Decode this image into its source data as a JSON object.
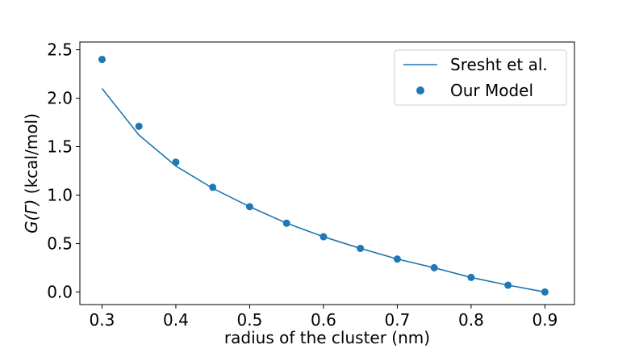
{
  "chart_data": {
    "type": "line",
    "title": "",
    "xlabel": "radius of the cluster (nm)",
    "ylabel_prefix": "G(Γ)",
    "ylabel_suffix": " (kcal/mol)",
    "xlim": [
      0.27,
      0.94
    ],
    "ylim": [
      -0.13,
      2.58
    ],
    "xticks": [
      0.3,
      0.4,
      0.5,
      0.6,
      0.7,
      0.8,
      0.9
    ],
    "xtick_labels": [
      "0.3",
      "0.4",
      "0.5",
      "0.6",
      "0.7",
      "0.8",
      "0.9"
    ],
    "yticks": [
      0.0,
      0.5,
      1.0,
      1.5,
      2.0,
      2.5
    ],
    "ytick_labels": [
      "0.0",
      "0.5",
      "1.0",
      "1.5",
      "2.0",
      "2.5"
    ],
    "grid": false,
    "legend_position": "top-right",
    "series": [
      {
        "name": "Sresht et al.",
        "kind": "line",
        "color": "#1f77b4",
        "x": [
          0.3,
          0.35,
          0.4,
          0.45,
          0.5,
          0.55,
          0.6,
          0.65,
          0.7,
          0.75,
          0.8,
          0.85,
          0.9
        ],
        "y": [
          2.1,
          1.62,
          1.3,
          1.07,
          0.88,
          0.71,
          0.57,
          0.45,
          0.34,
          0.25,
          0.15,
          0.07,
          0.0
        ]
      },
      {
        "name": "Our Model",
        "kind": "scatter",
        "color": "#1f77b4",
        "x": [
          0.3,
          0.35,
          0.4,
          0.45,
          0.5,
          0.55,
          0.6,
          0.65,
          0.7,
          0.75,
          0.8,
          0.85,
          0.9
        ],
        "y": [
          2.4,
          1.71,
          1.34,
          1.08,
          0.88,
          0.71,
          0.57,
          0.45,
          0.34,
          0.25,
          0.15,
          0.07,
          0.0
        ]
      }
    ]
  }
}
